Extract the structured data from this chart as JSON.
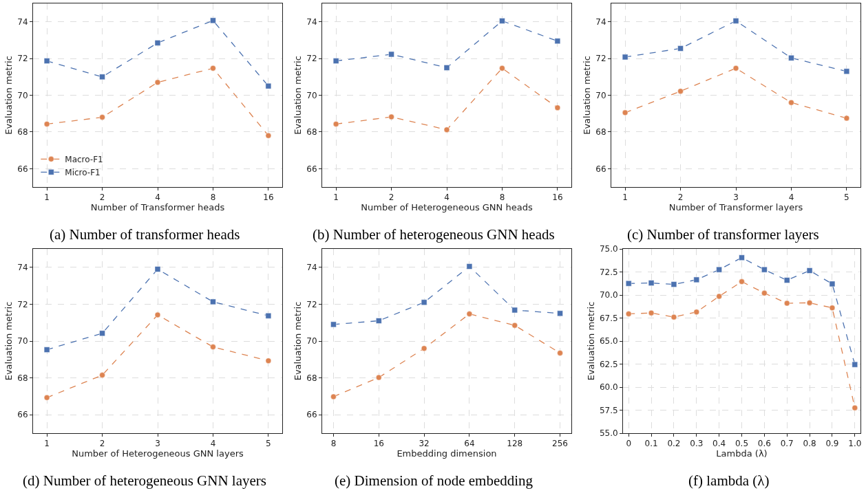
{
  "chart_data": [
    {
      "type": "line",
      "title": "(a) Number of transformer heads",
      "xlabel": "Number of Transformer heads",
      "ylabel": "Evaluation metric",
      "categories": [
        "1",
        "2",
        "4",
        "8",
        "16"
      ],
      "ylim": [
        65,
        75
      ],
      "yticks": [
        66,
        68,
        70,
        72,
        74
      ],
      "grid": true,
      "legend": "bottom left",
      "line_style": "dashed",
      "series": [
        {
          "name": "Macro-F1",
          "color": "#dd8452",
          "marker": "circle",
          "values": [
            68.43,
            68.8,
            70.7,
            71.47,
            67.8
          ]
        },
        {
          "name": "Micro-F1",
          "color": "#4c72b0",
          "marker": "square",
          "values": [
            71.87,
            71.0,
            72.85,
            74.07,
            70.5
          ]
        }
      ]
    },
    {
      "type": "line",
      "title": "(b) Number of heterogeneous GNN heads",
      "xlabel": "Number of Heterogeneous GNN heads",
      "ylabel": "Evaluation metric",
      "categories": [
        "1",
        "2",
        "4",
        "8",
        "16"
      ],
      "ylim": [
        65,
        75
      ],
      "yticks": [
        66,
        68,
        70,
        72,
        74
      ],
      "grid": true,
      "line_style": "dashed",
      "series": [
        {
          "color": "#dd8452",
          "marker": "circle",
          "values": [
            68.43,
            68.82,
            68.12,
            71.47,
            69.32
          ]
        },
        {
          "color": "#4c72b0",
          "marker": "square",
          "values": [
            71.87,
            72.23,
            71.5,
            74.05,
            72.95
          ]
        }
      ]
    },
    {
      "type": "line",
      "title": "(c) Number of transformer layers",
      "xlabel": "Number of Transformer layers",
      "ylabel": "Evaluation metric",
      "categories": [
        "1",
        "2",
        "3",
        "4",
        "5"
      ],
      "ylim": [
        65,
        75
      ],
      "yticks": [
        66,
        68,
        70,
        72,
        74
      ],
      "grid": true,
      "line_style": "dashed",
      "series": [
        {
          "color": "#dd8452",
          "marker": "circle",
          "values": [
            69.05,
            70.22,
            71.47,
            69.6,
            68.75
          ]
        },
        {
          "color": "#4c72b0",
          "marker": "square",
          "values": [
            72.08,
            72.55,
            74.05,
            72.03,
            71.3
          ]
        }
      ]
    },
    {
      "type": "line",
      "title": "(d) Number of heterogeneous GNN layers",
      "xlabel": "Number of Heterogeneous GNN layers",
      "ylabel": "Evaluation metric",
      "categories": [
        "1",
        "2",
        "3",
        "4",
        "5"
      ],
      "ylim": [
        65,
        75
      ],
      "yticks": [
        66,
        68,
        70,
        72,
        74
      ],
      "grid": true,
      "line_style": "dashed",
      "series": [
        {
          "color": "#dd8452",
          "marker": "circle",
          "values": [
            66.93,
            68.15,
            71.42,
            69.68,
            68.93
          ]
        },
        {
          "color": "#4c72b0",
          "marker": "square",
          "values": [
            69.53,
            70.42,
            73.9,
            72.13,
            71.37
          ]
        }
      ]
    },
    {
      "type": "line",
      "title": "(e) Dimension of node embedding",
      "xlabel": "Embedding dimension",
      "ylabel": "Evaluation metric",
      "categories": [
        "8",
        "16",
        "32",
        "64",
        "128",
        "256"
      ],
      "ylim": [
        65,
        75
      ],
      "yticks": [
        66,
        68,
        70,
        72,
        74
      ],
      "grid": true,
      "line_style": "dashed",
      "series": [
        {
          "color": "#dd8452",
          "marker": "circle",
          "values": [
            66.98,
            68.02,
            69.6,
            71.47,
            70.85,
            69.35
          ]
        },
        {
          "color": "#4c72b0",
          "marker": "square",
          "values": [
            70.9,
            71.1,
            72.1,
            74.05,
            71.68,
            71.5
          ]
        }
      ]
    },
    {
      "type": "line",
      "title": "(f) lambda (λ)",
      "xlabel": "Lambda (λ)",
      "ylabel": "Evaluation metric",
      "categories": [
        "0",
        "0.1",
        "0.2",
        "0.3",
        "0.4",
        "0.5",
        "0.6",
        "0.7",
        "0.8",
        "0.9",
        "1.0"
      ],
      "ylim": [
        55,
        75
      ],
      "yticks": [
        {
          "value": 55,
          "label": "55.0"
        },
        {
          "value": 57.5,
          "label": "57.5"
        },
        {
          "value": 60,
          "label": "60.0"
        },
        {
          "value": 62.5,
          "label": "62.5"
        },
        {
          "value": 65,
          "label": "65.0"
        },
        {
          "value": 67.5,
          "label": "67.5"
        },
        {
          "value": 70,
          "label": "70.0"
        },
        {
          "value": 72.5,
          "label": "72.5"
        },
        {
          "value": 75,
          "label": "75.0"
        }
      ],
      "grid": true,
      "line_style": "dashed",
      "series": [
        {
          "color": "#dd8452",
          "marker": "circle",
          "values": [
            67.95,
            68.05,
            67.6,
            68.15,
            69.85,
            71.45,
            70.2,
            69.1,
            69.15,
            68.6,
            57.75
          ]
        },
        {
          "color": "#4c72b0",
          "marker": "square",
          "values": [
            71.25,
            71.3,
            71.15,
            71.65,
            72.75,
            74.05,
            72.75,
            71.6,
            72.65,
            71.2,
            62.45
          ]
        }
      ]
    }
  ]
}
